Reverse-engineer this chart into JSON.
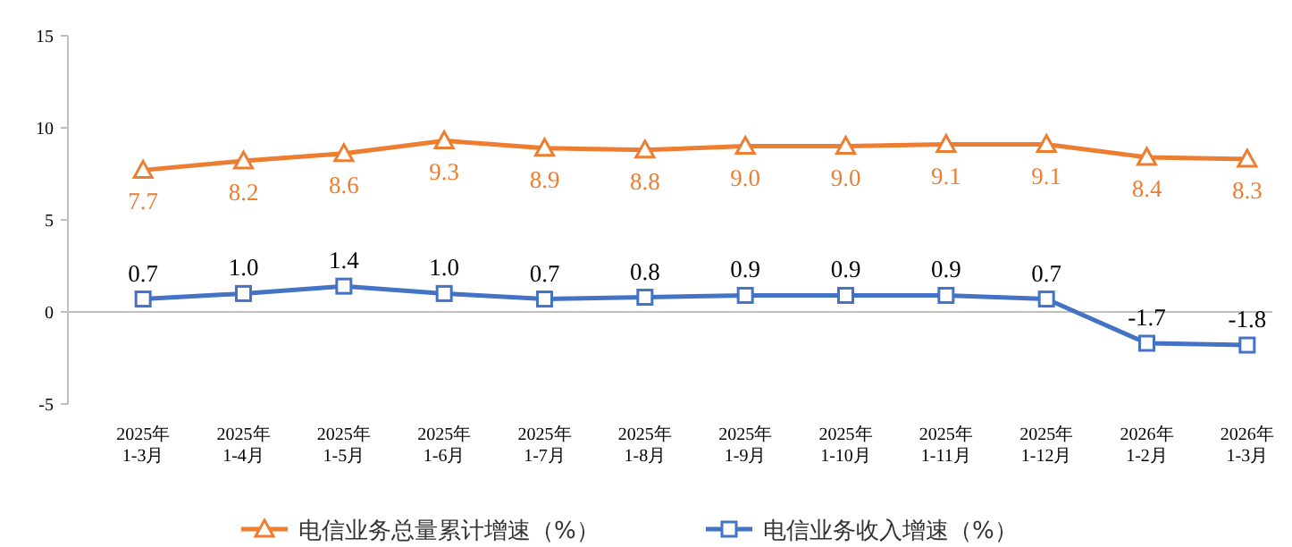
{
  "chart_data": {
    "type": "line",
    "categories": [
      "2025年\n1-3月",
      "2025年\n1-4月",
      "2025年\n1-5月",
      "2025年\n1-6月",
      "2025年\n1-7月",
      "2025年\n1-8月",
      "2025年\n1-9月",
      "2025年\n1-10月",
      "2025年\n1-11月",
      "2025年\n1-12月",
      "2026年\n1-2月",
      "2026年\n1-3月"
    ],
    "series": [
      {
        "name": "电信业务总量累计增速（%）",
        "color": "#ed7d31",
        "marker": "triangle",
        "values": [
          7.7,
          8.2,
          8.6,
          9.3,
          8.9,
          8.8,
          9.0,
          9.0,
          9.1,
          9.1,
          8.4,
          8.3
        ],
        "value_labels": [
          "7.7",
          "8.2",
          "8.6",
          "9.3",
          "8.9",
          "8.8",
          "9.0",
          "9.0",
          "9.1",
          "9.1",
          "8.4",
          "8.3"
        ]
      },
      {
        "name": "电信业务收入增速（%）",
        "color": "#4472c4",
        "marker": "square",
        "values": [
          0.7,
          1.0,
          1.4,
          1.0,
          0.7,
          0.8,
          0.9,
          0.9,
          0.9,
          0.7,
          -1.7,
          -1.8
        ],
        "value_labels": [
          "0.7",
          "1.0",
          "1.4",
          "1.0",
          "0.7",
          "0.8",
          "0.9",
          "0.9",
          "0.9",
          "0.7",
          "-1.7",
          "-1.8"
        ]
      }
    ],
    "ylim": [
      -5,
      15
    ],
    "yticks": [
      -5,
      0,
      5,
      10,
      15
    ],
    "legend": "bottom"
  }
}
